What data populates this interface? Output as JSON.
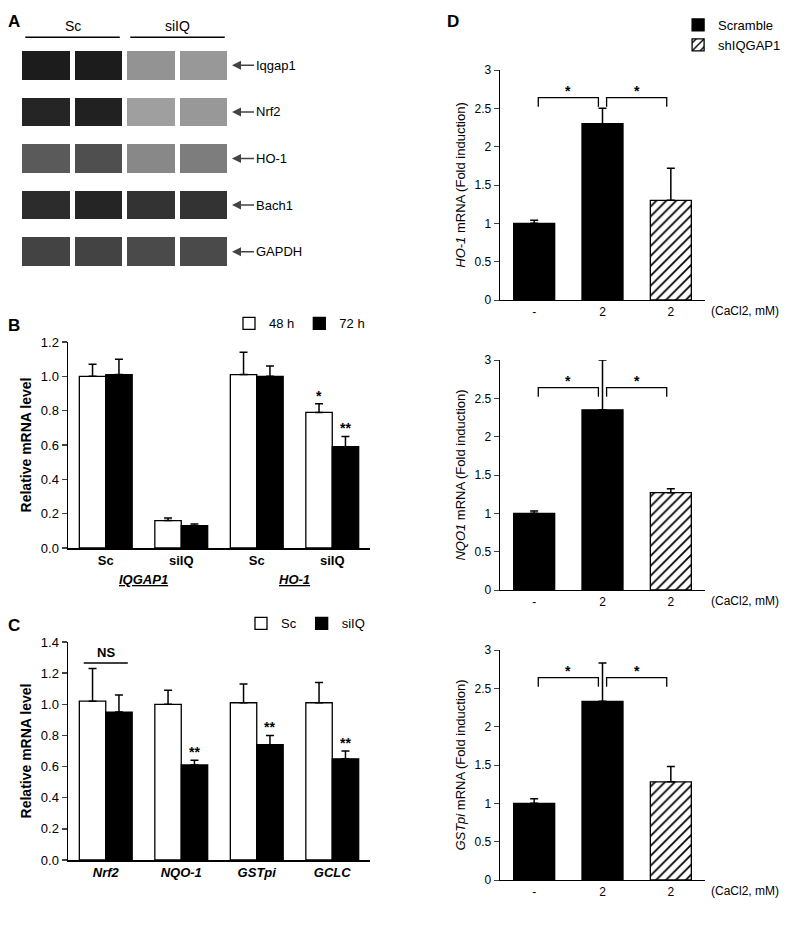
{
  "chart_data": [
    {
      "panel": "A",
      "type": "blot",
      "groups": [
        {
          "label": "Sc",
          "lanes": 2
        },
        {
          "label": "siIQ",
          "lanes": 2
        }
      ],
      "rows": [
        {
          "name": "Iqgap1",
          "values": [
            0.92,
            0.92,
            0.4,
            0.38
          ]
        },
        {
          "name": "Nrf2",
          "values": [
            0.88,
            0.9,
            0.35,
            0.38
          ]
        },
        {
          "name": "HO-1",
          "values": [
            0.65,
            0.7,
            0.45,
            0.5
          ]
        },
        {
          "name": "Bach1",
          "values": [
            0.85,
            0.88,
            0.82,
            0.82
          ]
        },
        {
          "name": "GAPDH",
          "values": [
            0.75,
            0.75,
            0.72,
            0.72
          ]
        }
      ],
      "zlim": [
        0,
        1
      ]
    },
    {
      "panel": "B",
      "type": "bar",
      "ylabel": "Relative mRNA level",
      "categories": [
        "Sc",
        "siIQ",
        "Sc",
        "siIQ"
      ],
      "groups": [
        {
          "label": "IQGAP1",
          "from": 0,
          "to": 1
        },
        {
          "label": "HO-1",
          "from": 2,
          "to": 3
        }
      ],
      "series": [
        {
          "name": "48 h",
          "color": "#ffffff",
          "values": [
            1.0,
            0.16,
            1.01,
            0.79
          ],
          "errors": [
            0.07,
            0.015,
            0.13,
            0.05
          ]
        },
        {
          "name": "72 h",
          "color": "#000000",
          "values": [
            1.01,
            0.13,
            1.0,
            0.59
          ],
          "errors": [
            0.09,
            0.01,
            0.06,
            0.06
          ]
        }
      ],
      "marks": [
        {
          "index": 3,
          "series": "48 h",
          "text": "*"
        },
        {
          "index": 3,
          "series": "72 h",
          "text": "**"
        }
      ],
      "legend": "top-right",
      "ylim": [
        0,
        1.2
      ],
      "yticks": [
        {
          "value": 0,
          "label": "0.0"
        },
        0.2,
        0.4,
        0.6,
        0.8,
        {
          "value": 1,
          "label": "1.0"
        },
        1.2
      ],
      "grid": false
    },
    {
      "panel": "C",
      "type": "bar",
      "ylabel": "Relative mRNA level",
      "categories": [
        "Nrf2",
        "NQO-1",
        "GSTpi",
        "GCLC"
      ],
      "series": [
        {
          "name": "Sc",
          "color": "#ffffff",
          "values": [
            1.02,
            1.0,
            1.01,
            1.01
          ],
          "errors": [
            0.21,
            0.09,
            0.12,
            0.13
          ]
        },
        {
          "name": "siIQ",
          "color": "#000000",
          "values": [
            0.95,
            0.61,
            0.74,
            0.65
          ],
          "errors": [
            0.11,
            0.03,
            0.06,
            0.05
          ]
        }
      ],
      "marks": [
        {
          "index": 0,
          "text": "NS"
        },
        {
          "index": 1,
          "series": "siIQ",
          "text": "**"
        },
        {
          "index": 2,
          "series": "siIQ",
          "text": "**"
        },
        {
          "index": 3,
          "series": "siIQ",
          "text": "**"
        }
      ],
      "legend": "top-right",
      "ylim": [
        0,
        1.4
      ],
      "yticks": [
        {
          "value": 0,
          "label": "0.0"
        },
        0.2,
        0.4,
        0.6,
        0.8,
        {
          "value": 1,
          "label": "1.0"
        },
        1.2,
        1.4
      ],
      "grid": false
    },
    {
      "panel": "D",
      "type": "bar",
      "categories": [
        "-",
        "2",
        "2"
      ],
      "xlabel": "(CaCl2, mM)",
      "legend": "top-right",
      "ylim": [
        0,
        3
      ],
      "yticks": [
        0,
        0.5,
        1,
        1.5,
        2,
        2.5,
        3
      ],
      "grid": false,
      "charts": [
        {
          "ylabel": "HO-1 mRNA (Fold induction)",
          "series": [
            {
              "name": "Scramble",
              "color": "#000000",
              "values": [
                1.0,
                2.3,
                null
              ],
              "errors": [
                0.04,
                0.2,
                null
              ]
            },
            {
              "name": "shIQGAP1",
              "color": "#ffffff",
              "marker": "hatched",
              "values": [
                null,
                null,
                1.3
              ],
              "errors": [
                null,
                null,
                0.42
              ]
            }
          ],
          "comparisons": [
            {
              "from": 0,
              "to": 1,
              "text": "*"
            },
            {
              "from": 1,
              "to": 2,
              "text": "*"
            }
          ]
        },
        {
          "ylabel": "NQO1 mRNA (Fold induction)",
          "series": [
            {
              "name": "Scramble",
              "color": "#000000",
              "values": [
                1.0,
                2.35,
                null
              ],
              "errors": [
                0.03,
                0.65,
                null
              ]
            },
            {
              "name": "shIQGAP1",
              "color": "#ffffff",
              "marker": "hatched",
              "values": [
                null,
                null,
                1.27
              ],
              "errors": [
                null,
                null,
                0.05
              ]
            }
          ],
          "comparisons": [
            {
              "from": 0,
              "to": 1,
              "text": "*"
            },
            {
              "from": 1,
              "to": 2,
              "text": "*"
            }
          ]
        },
        {
          "ylabel": "GSTpi mRNA (Fold induction)",
          "series": [
            {
              "name": "Scramble",
              "color": "#000000",
              "values": [
                1.0,
                2.33,
                null
              ],
              "errors": [
                0.06,
                0.5,
                null
              ]
            },
            {
              "name": "shIQGAP1",
              "color": "#ffffff",
              "marker": "hatched",
              "values": [
                null,
                null,
                1.28
              ],
              "errors": [
                null,
                null,
                0.2
              ]
            }
          ],
          "comparisons": [
            {
              "from": 0,
              "to": 1,
              "text": "*"
            },
            {
              "from": 1,
              "to": 2,
              "text": "*"
            }
          ]
        }
      ]
    }
  ]
}
